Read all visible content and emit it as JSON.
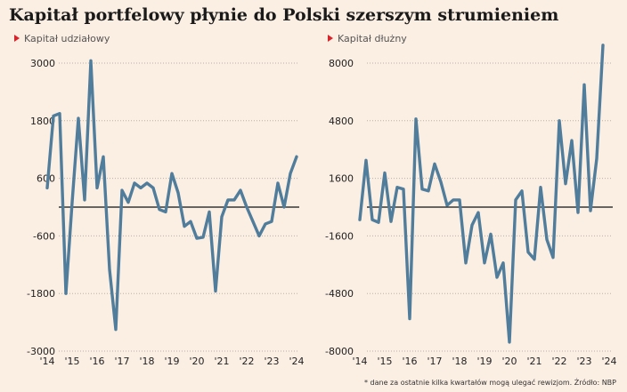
{
  "title": "Kapitał portfelowy płynie do Polski szerszym strumieniem",
  "footnote": "* dane za ostatnie kilka kwartałów mogą ulegać rewizjom. Źródło: NBP",
  "colors": {
    "line": "#4f7d9b",
    "marker": "#d8232a",
    "background": "#fbeee3"
  },
  "chart_data": [
    {
      "type": "line",
      "title": "Kapitał udziałowy",
      "x_labels": [
        "'14",
        "'15",
        "'16",
        "'17",
        "'18",
        "'19",
        "'20",
        "'21",
        "'22",
        "'23",
        "'24"
      ],
      "y_ticks": [
        3000,
        1800,
        600,
        -600,
        -1800,
        -3000
      ],
      "y_tick_labels": [
        "3000",
        "1800",
        "600",
        "-600",
        "-1800",
        "-3000"
      ],
      "ylim": [
        -3000,
        3000
      ],
      "x": [
        2014.0,
        2014.25,
        2014.5,
        2014.75,
        2015.0,
        2015.25,
        2015.5,
        2015.75,
        2016.0,
        2016.25,
        2016.5,
        2016.75,
        2017.0,
        2017.25,
        2017.5,
        2017.75,
        2018.0,
        2018.25,
        2018.5,
        2018.75,
        2019.0,
        2019.25,
        2019.5,
        2019.75,
        2020.0,
        2020.25,
        2020.5,
        2020.75,
        2021.0,
        2021.25,
        2021.5,
        2021.75,
        2022.0,
        2022.25,
        2022.5,
        2022.75,
        2023.0,
        2023.25,
        2023.5,
        2023.75,
        2024.0
      ],
      "values": [
        400,
        1900,
        1950,
        -1800,
        100,
        1850,
        150,
        3050,
        400,
        1050,
        -1300,
        -2550,
        350,
        100,
        500,
        400,
        500,
        400,
        -50,
        -100,
        700,
        300,
        -400,
        -300,
        -650,
        -630,
        -100,
        -1750,
        -200,
        150,
        150,
        350,
        0,
        -300,
        -600,
        -350,
        -300,
        500,
        0,
        700,
        1050
      ]
    },
    {
      "type": "line",
      "title": "Kapitał dłużny",
      "x_labels": [
        "'14",
        "'15",
        "'16",
        "'17",
        "'18",
        "'19",
        "'20",
        "'21",
        "'22",
        "'23",
        "'24"
      ],
      "y_ticks": [
        8000,
        4800,
        1600,
        -1600,
        -4800,
        -8000
      ],
      "y_tick_labels": [
        "8000",
        "4800",
        "1600",
        "-1600",
        "-4800",
        "-8000"
      ],
      "ylim": [
        -8000,
        8000
      ],
      "x": [
        2014.0,
        2014.25,
        2014.5,
        2014.75,
        2015.0,
        2015.25,
        2015.5,
        2015.75,
        2016.0,
        2016.25,
        2016.5,
        2016.75,
        2017.0,
        2017.25,
        2017.5,
        2017.75,
        2018.0,
        2018.25,
        2018.5,
        2018.75,
        2019.0,
        2019.25,
        2019.5,
        2019.75,
        2020.0,
        2020.25,
        2020.5,
        2020.75,
        2021.0,
        2021.25,
        2021.5,
        2021.75,
        2022.0,
        2022.25,
        2022.5,
        2022.75,
        2023.0,
        2023.25,
        2023.5,
        2023.75,
        2024.0
      ],
      "values": [
        -700,
        2600,
        -700,
        -850,
        1900,
        -800,
        1100,
        1000,
        -6200,
        4900,
        1000,
        900,
        2400,
        1400,
        100,
        400,
        400,
        -3100,
        -1000,
        -300,
        -3100,
        -1500,
        -3900,
        -3100,
        -7500,
        400,
        900,
        -2500,
        -2900,
        1100,
        -1800,
        -2800,
        4800,
        1300,
        3700,
        -300,
        6800,
        -200,
        2700,
        9000,
        null
      ]
    }
  ]
}
